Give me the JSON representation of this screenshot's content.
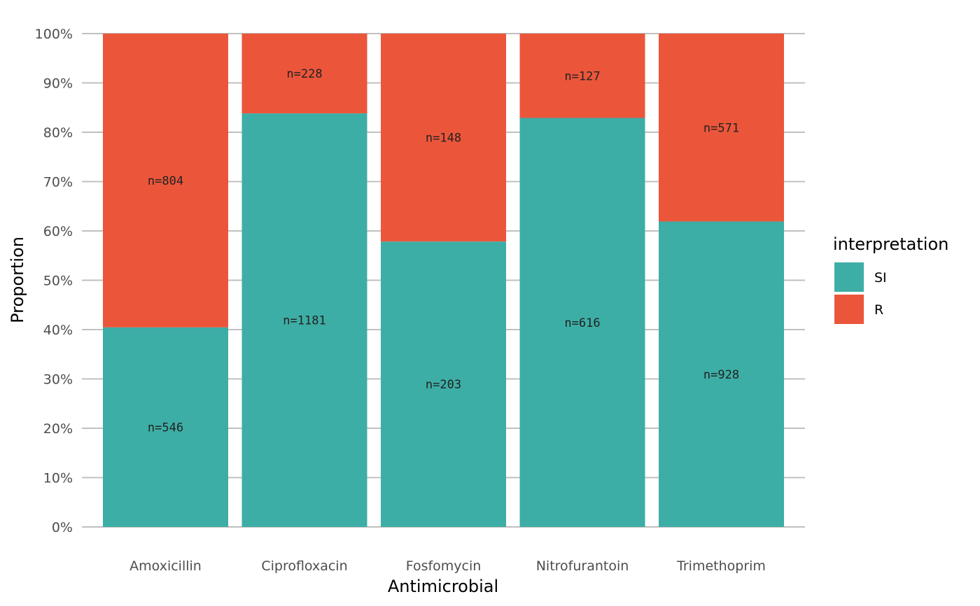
{
  "chart_data": {
    "type": "bar",
    "stacked": true,
    "xlabel": "Antimicrobial",
    "ylabel": "Proportion",
    "ylim": [
      0,
      1
    ],
    "y_ticks": [
      "0%",
      "10%",
      "20%",
      "30%",
      "40%",
      "50%",
      "60%",
      "70%",
      "80%",
      "90%",
      "100%"
    ],
    "categories": [
      "Amoxicillin",
      "Ciprofloxacin",
      "Fosfomycin",
      "Nitrofurantoin",
      "Trimethoprim"
    ],
    "series": [
      {
        "name": "SI",
        "color": "#3dae a5",
        "counts": [
          546,
          1181,
          203,
          616,
          928
        ],
        "labels": [
          "n=546",
          "n=1181",
          "n=203",
          "n=616",
          "n=928"
        ]
      },
      {
        "name": "R",
        "color": "#eb563b",
        "counts": [
          804,
          228,
          148,
          127,
          571
        ],
        "labels": [
          "n=804",
          "n=228",
          "n=148",
          "n=127",
          "n=571"
        ]
      }
    ],
    "legend": {
      "title": "interpretation",
      "placement": "right"
    },
    "grid": true
  }
}
